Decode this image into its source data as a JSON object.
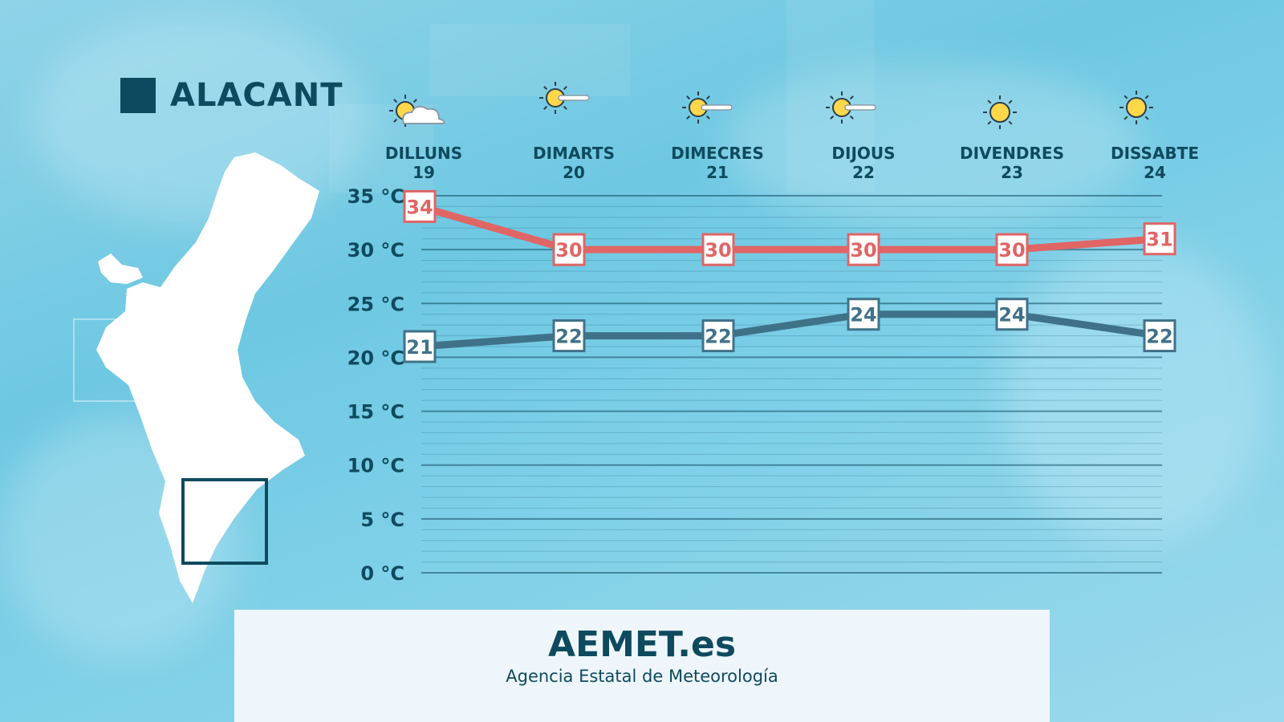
{
  "region": {
    "name": "ALACANT"
  },
  "footer": {
    "brand": "AEMET.es",
    "subtitle": "Agencia Estatal de Meteorología"
  },
  "colors": {
    "max": "#e06565",
    "min": "#3f7289",
    "dark": "#0e4a5e",
    "sun": "#ffd84a"
  },
  "days": [
    {
      "name": "DILLUNS",
      "date": "19",
      "icon": "sun-cloud-icon"
    },
    {
      "name": "DIMARTS",
      "date": "20",
      "icon": "sun-haze-icon"
    },
    {
      "name": "DIMECRES",
      "date": "21",
      "icon": "sun-haze-icon"
    },
    {
      "name": "DIJOUS",
      "date": "22",
      "icon": "sun-haze-icon"
    },
    {
      "name": "DIVENDRES",
      "date": "23",
      "icon": "sun-icon"
    },
    {
      "name": "DISSABTE",
      "date": "24",
      "icon": "sun-icon"
    }
  ],
  "chart_data": {
    "type": "line",
    "title": "",
    "xlabel": "",
    "ylabel": "",
    "categories": [
      "DILLUNS 19",
      "DIMARTS 20",
      "DIMECRES 21",
      "DIJOUS 22",
      "DIVENDRES 23",
      "DISSABTE 24"
    ],
    "ylim": [
      0,
      35
    ],
    "yticks": [
      0,
      5,
      10,
      15,
      20,
      25,
      30,
      35
    ],
    "ytick_labels": [
      "0 °C",
      "5 °C",
      "10 °C",
      "15 °C",
      "20 °C",
      "25 °C",
      "30 °C",
      "35 °C"
    ],
    "grid": true,
    "series": [
      {
        "key": "max",
        "values": [
          34,
          30,
          30,
          30,
          30,
          31
        ]
      },
      {
        "key": "min",
        "values": [
          21,
          22,
          22,
          24,
          24,
          22
        ]
      }
    ]
  }
}
